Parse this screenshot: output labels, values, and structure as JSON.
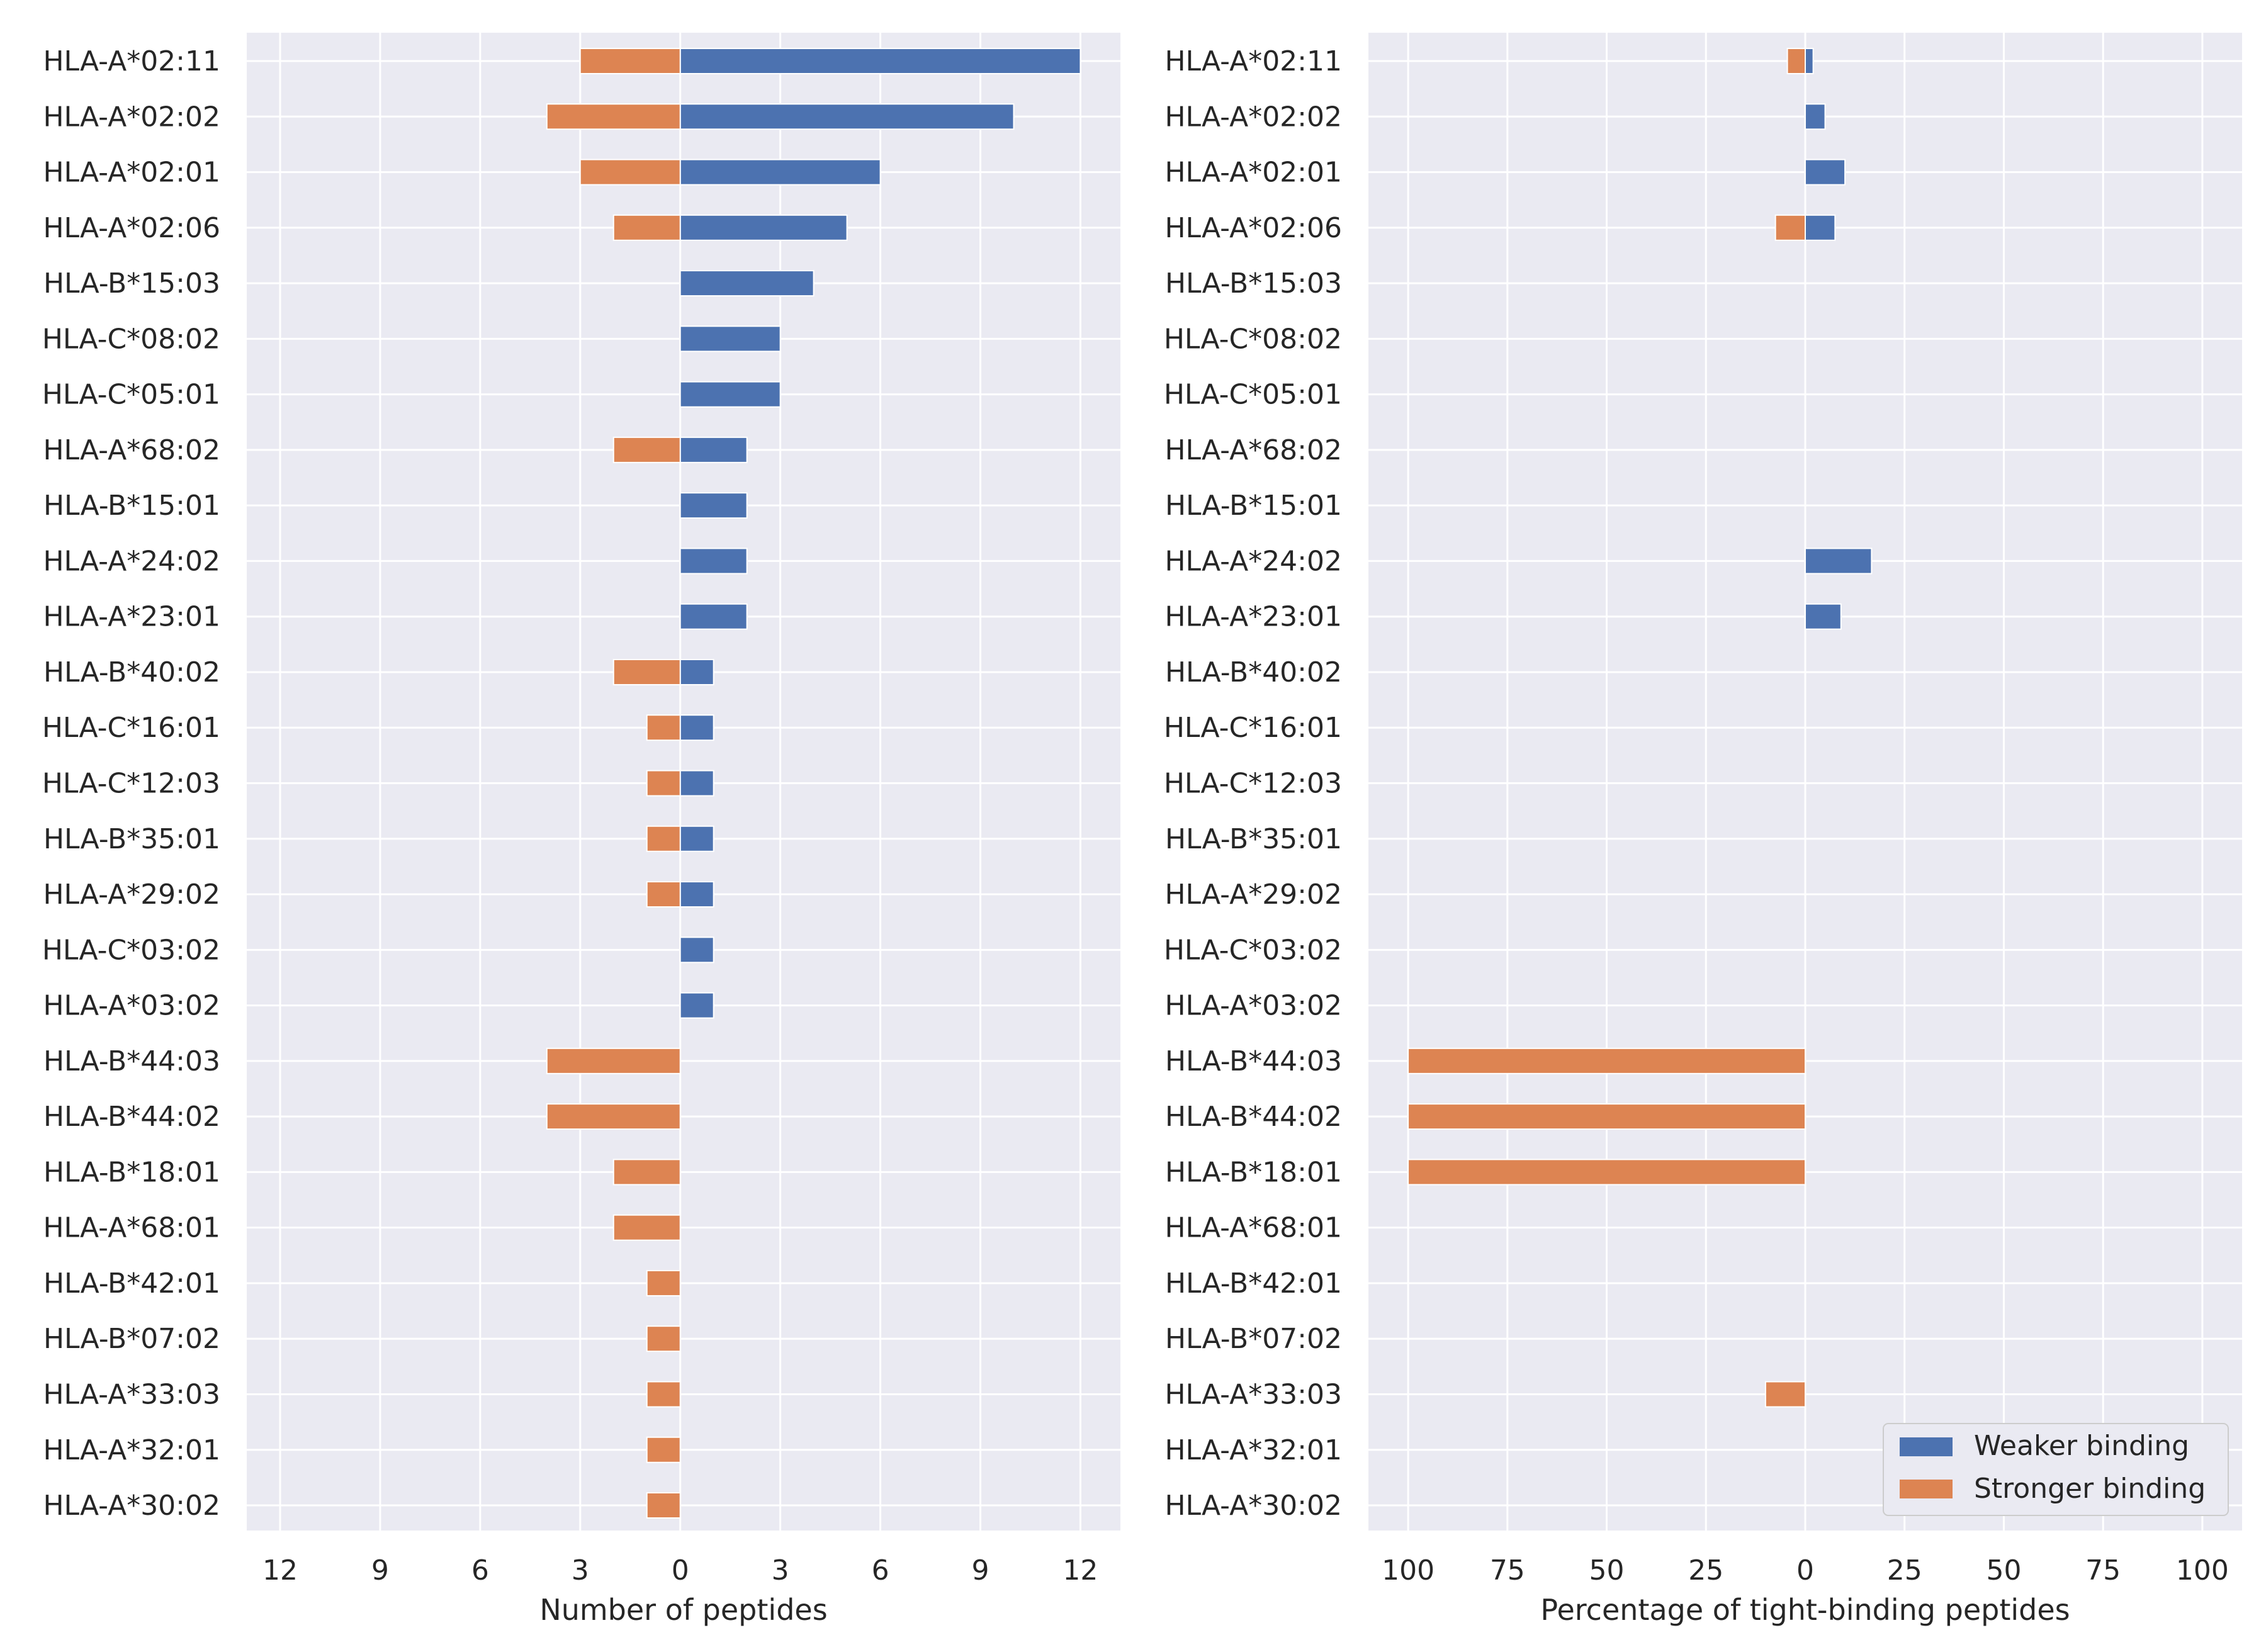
{
  "chart_data": [
    {
      "type": "bar",
      "orientation": "horizontal",
      "style": "diverging",
      "xlabel": "Number of peptides",
      "xlim": [
        -13,
        13.2
      ],
      "xticks": [
        -12,
        -9,
        -6,
        -3,
        0,
        3,
        6,
        9,
        12
      ],
      "xtick_labels": [
        "12",
        "9",
        "6",
        "3",
        "0",
        "3",
        "6",
        "9",
        "12"
      ],
      "grid": true,
      "categories": [
        "HLA-A*02:11",
        "HLA-A*02:02",
        "HLA-A*02:01",
        "HLA-A*02:06",
        "HLA-B*15:03",
        "HLA-C*08:02",
        "HLA-C*05:01",
        "HLA-A*68:02",
        "HLA-B*15:01",
        "HLA-A*24:02",
        "HLA-A*23:01",
        "HLA-B*40:02",
        "HLA-C*16:01",
        "HLA-C*12:03",
        "HLA-B*35:01",
        "HLA-A*29:02",
        "HLA-C*03:02",
        "HLA-A*03:02",
        "HLA-B*44:03",
        "HLA-B*44:02",
        "HLA-B*18:01",
        "HLA-A*68:01",
        "HLA-B*42:01",
        "HLA-B*07:02",
        "HLA-A*33:03",
        "HLA-A*32:01",
        "HLA-A*30:02"
      ],
      "series": [
        {
          "name": "Weaker binding",
          "color": "#4c72b0",
          "direction": "right",
          "values": [
            12,
            10,
            6,
            5,
            4,
            3,
            3,
            2,
            2,
            2,
            2,
            1,
            1,
            1,
            1,
            1,
            1,
            1,
            0,
            0,
            0,
            0,
            0,
            0,
            0,
            0,
            0
          ]
        },
        {
          "name": "Stronger binding",
          "color": "#dd8452",
          "direction": "left",
          "values": [
            3,
            4,
            3,
            2,
            0,
            0,
            0,
            2,
            0,
            0,
            0,
            2,
            1,
            1,
            1,
            1,
            0,
            0,
            4,
            4,
            2,
            2,
            1,
            1,
            1,
            1,
            1
          ]
        }
      ]
    },
    {
      "type": "bar",
      "orientation": "horizontal",
      "style": "diverging",
      "xlabel": "Percentage of tight-binding peptides",
      "xlim": [
        -110,
        110
      ],
      "xticks": [
        -100,
        -75,
        -50,
        -25,
        0,
        25,
        50,
        75,
        100
      ],
      "xtick_labels": [
        "100",
        "75",
        "50",
        "25",
        "0",
        "25",
        "50",
        "75",
        "100"
      ],
      "grid": true,
      "legend_position": "lower-right",
      "categories": [
        "HLA-A*02:11",
        "HLA-A*02:02",
        "HLA-A*02:01",
        "HLA-A*02:06",
        "HLA-B*15:03",
        "HLA-C*08:02",
        "HLA-C*05:01",
        "HLA-A*68:02",
        "HLA-B*15:01",
        "HLA-A*24:02",
        "HLA-A*23:01",
        "HLA-B*40:02",
        "HLA-C*16:01",
        "HLA-C*12:03",
        "HLA-B*35:01",
        "HLA-A*29:02",
        "HLA-C*03:02",
        "HLA-A*03:02",
        "HLA-B*44:03",
        "HLA-B*44:02",
        "HLA-B*18:01",
        "HLA-A*68:01",
        "HLA-B*42:01",
        "HLA-B*07:02",
        "HLA-A*33:03",
        "HLA-A*32:01",
        "HLA-A*30:02"
      ],
      "series": [
        {
          "name": "Weaker binding",
          "color": "#4c72b0",
          "direction": "right",
          "values": [
            2,
            5,
            10,
            7.5,
            0,
            0,
            0,
            0,
            0,
            16.7,
            9,
            0,
            0,
            0,
            0,
            0,
            0,
            0,
            0,
            0,
            0,
            0,
            0,
            0,
            0,
            0,
            0
          ]
        },
        {
          "name": "Stronger binding",
          "color": "#dd8452",
          "direction": "left",
          "values": [
            4.5,
            0,
            0,
            7.5,
            0,
            0,
            0,
            0,
            0,
            0,
            0,
            0,
            0,
            0,
            0,
            0,
            0,
            0,
            100,
            100,
            100,
            0,
            0,
            0,
            10,
            0,
            0
          ]
        }
      ]
    }
  ],
  "legend": {
    "entries": [
      {
        "label": "Weaker binding",
        "color": "#4c72b0"
      },
      {
        "label": "Stronger binding",
        "color": "#dd8452"
      }
    ]
  },
  "style": {
    "panel_background": "#eaeaf2",
    "grid_color": "#ffffff"
  }
}
